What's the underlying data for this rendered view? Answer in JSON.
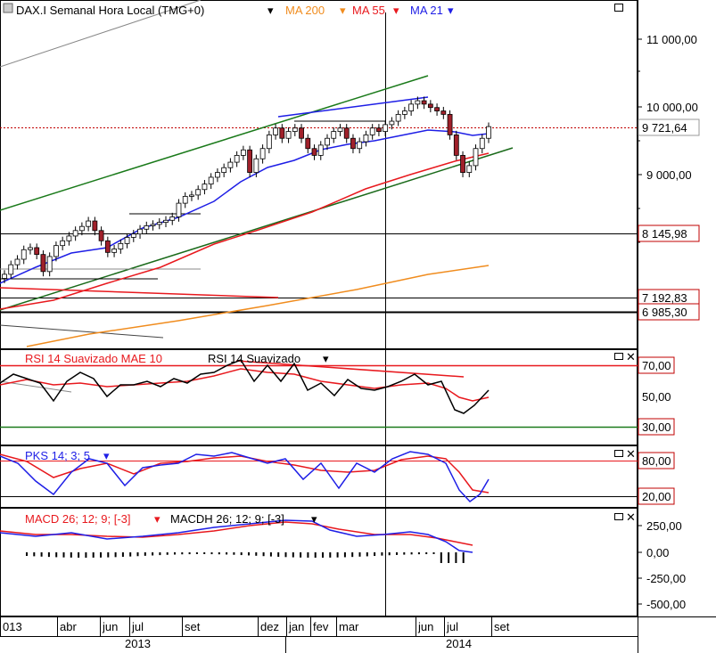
{
  "chart_data": [
    {
      "type": "candlestick",
      "title": "DAX.I Semanal Hora Local (TMG+0)",
      "indicators": [
        {
          "name": "MA 200",
          "color": "#f08c1e"
        },
        {
          "name": "MA 55",
          "color": "#e8191e"
        },
        {
          "name": "MA 21",
          "color": "#1e1ee6"
        }
      ],
      "y_ticks": [
        "11 000,00",
        "10 000,00",
        "9 000,00"
      ],
      "ylim": [
        6800,
        11800
      ],
      "price_labels": [
        {
          "text": "9 721,64",
          "value": 9721.64,
          "color": "#000000",
          "border": "#999999"
        },
        {
          "text": "8 145,98",
          "value": 8145.98,
          "color": "#c00000",
          "border": "#c00000"
        },
        {
          "text": "7 192,83",
          "value": 7192.83,
          "color": "#c00000",
          "border": "#c00000"
        },
        {
          "text": "6 985,30",
          "value": 6985.3,
          "color": "#c00000",
          "border": "#c00000"
        }
      ],
      "closes": [
        7560,
        7700,
        7780,
        7920,
        7950,
        7850,
        7600,
        7820,
        7980,
        8050,
        8120,
        8200,
        8260,
        8340,
        8200,
        8050,
        7880,
        7930,
        8010,
        8100,
        8150,
        8220,
        8270,
        8290,
        8320,
        8350,
        8400,
        8600,
        8700,
        8720,
        8800,
        8880,
        8980,
        9050,
        9120,
        9200,
        9300,
        9380,
        9050,
        9250,
        9400,
        9600,
        9700,
        9550,
        9650,
        9700,
        9550,
        9400,
        9300,
        9450,
        9550,
        9650,
        9700,
        9550,
        9400,
        9500,
        9600,
        9700,
        9650,
        9750,
        9800,
        9900,
        9950,
        10050,
        10100,
        10050,
        10000,
        9950,
        9900,
        9600,
        9300,
        9050,
        9150,
        9400,
        9550,
        9721
      ]
    },
    {
      "type": "line",
      "title": "RSI 14 Suavizado MAE 10",
      "series": [
        {
          "name": "RSI 14 Suavizado",
          "color": "#000000"
        },
        {
          "name": "MAE 10",
          "color": "#e8191e"
        }
      ],
      "y_ticks": [
        "70,00",
        "50,00",
        "30,00"
      ]
    },
    {
      "type": "line",
      "title": "PKS 14; 3; 5",
      "series": [
        {
          "name": "PKS",
          "color": "#1e1ee6"
        },
        {
          "name": "Signal",
          "color": "#e8191e"
        }
      ],
      "y_ticks": [
        "80,00",
        "20,00"
      ]
    },
    {
      "type": "line",
      "title": "MACD 26; 12; 9; [-3]",
      "title2": "MACDH 26; 12; 9; [-3]",
      "series": [
        {
          "name": "MACD",
          "color": "#1e1ee6"
        },
        {
          "name": "Signal",
          "color": "#e8191e"
        },
        {
          "name": "MACDH",
          "color": "#000000"
        }
      ],
      "y_ticks": [
        "250,00",
        "0,00",
        "-250,00",
        "-500,00"
      ]
    }
  ],
  "x_axis": {
    "months": [
      "013",
      "abr",
      "jun",
      "jul",
      "set",
      "dez",
      "jan",
      "fev",
      "mar",
      "jun",
      "jul",
      "set"
    ],
    "years": [
      "2013",
      "2014"
    ]
  }
}
